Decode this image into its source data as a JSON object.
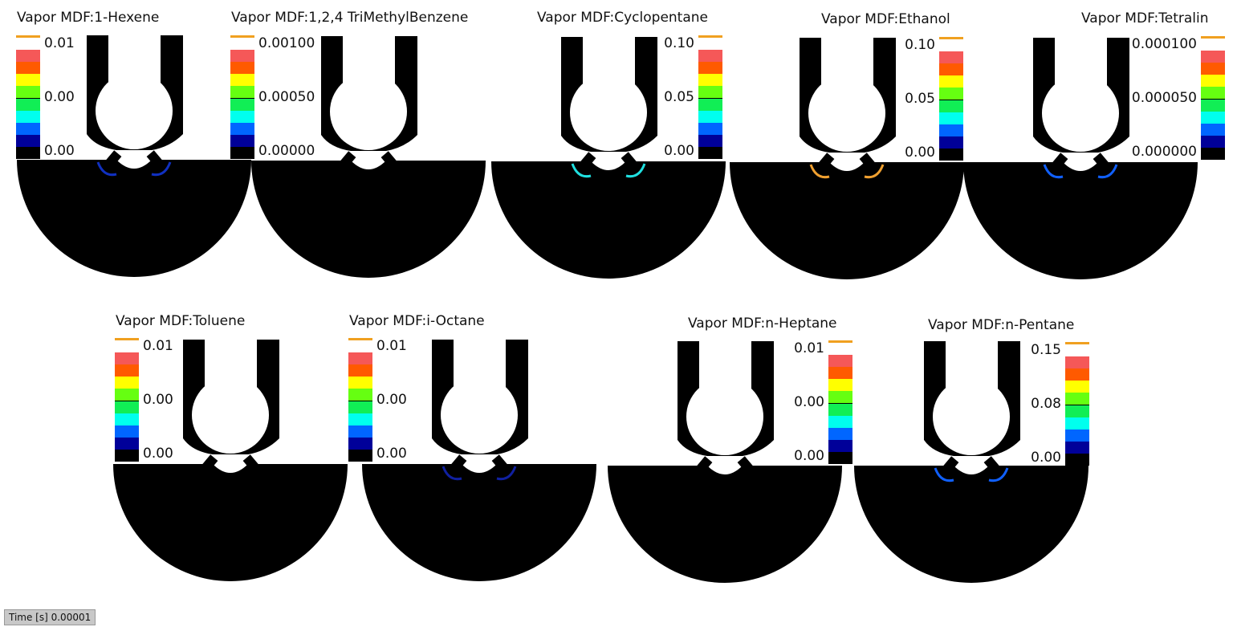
{
  "colorbar_colors": [
    "#ffffff",
    "#f55858",
    "#ff5a00",
    "#ffff00",
    "#66ff11",
    "#11ee55",
    "#00ffee",
    "#0066ff",
    "#000099",
    "#000000"
  ],
  "panels": [
    {
      "title": "Vapor MDF:1-Hexene",
      "labels": [
        "0.01",
        "0.00",
        "0.00"
      ],
      "spray_color": "#1030c0"
    },
    {
      "title": "Vapor MDF:1,2,4 TriMethylBenzene",
      "labels": [
        "0.00100",
        "0.00050",
        "0.00000"
      ],
      "spray_color": ""
    },
    {
      "title": "Vapor MDF:Cyclopentane",
      "labels": [
        "0.10",
        "0.05",
        "0.00"
      ],
      "spray_color": "#20e0e0"
    },
    {
      "title": "Vapor MDF:Ethanol",
      "labels": [
        "0.10",
        "0.05",
        "0.00"
      ],
      "spray_color": "#f0a030"
    },
    {
      "title": "Vapor MDF:Tetralin",
      "labels": [
        "0.000100",
        "0.000050",
        "0.000000"
      ],
      "spray_color": "#1060ff"
    },
    {
      "title": "Vapor MDF:Toluene",
      "labels": [
        "0.01",
        "0.00",
        "0.00"
      ],
      "spray_color": ""
    },
    {
      "title": "Vapor MDF:i-Octane",
      "labels": [
        "0.01",
        "0.00",
        "0.00"
      ],
      "spray_color": "#1020a0"
    },
    {
      "title": "Vapor MDF:n-Heptane",
      "labels": [
        "0.01",
        "0.00",
        "0.00"
      ],
      "spray_color": ""
    },
    {
      "title": "Vapor MDF:n-Pentane",
      "labels": [
        "0.15",
        "0.08",
        "0.00"
      ],
      "spray_color": "#1060ff"
    }
  ],
  "time_label": "Time [s] 0.00001"
}
